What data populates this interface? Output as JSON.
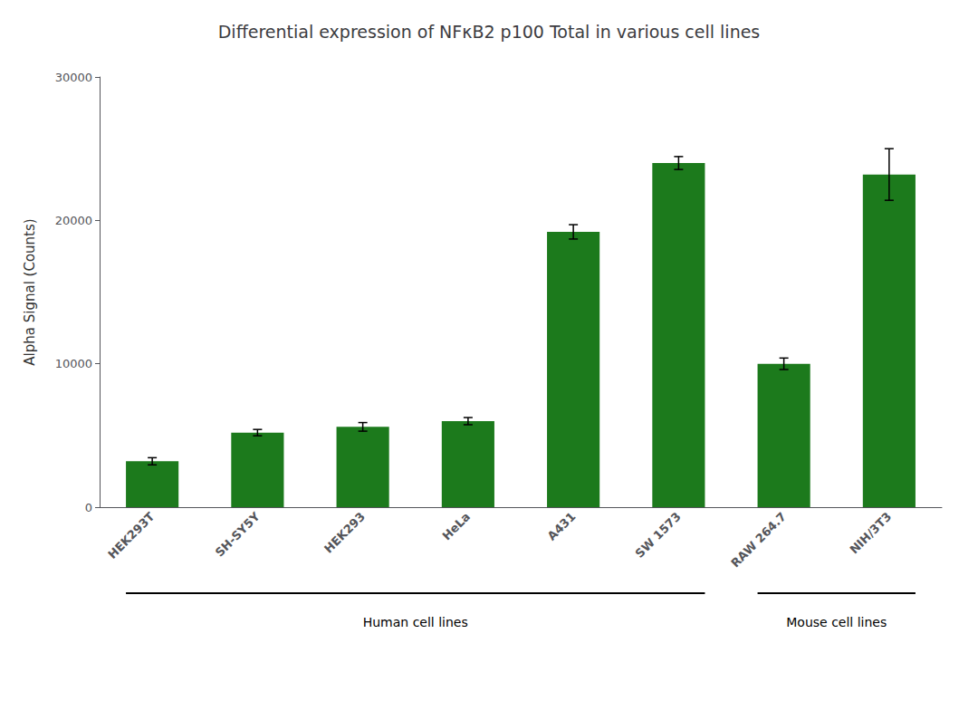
{
  "chart_data": {
    "type": "bar",
    "title": "Differential expression of NFκB2 p100 Total in various cell lines",
    "ylabel": "Alpha Signal (Counts)",
    "categories": [
      "HEK293T",
      "SH-SY5Y",
      "HEK293",
      "HeLa",
      "A431",
      "SW 1573",
      "RAW 264.7",
      "NIH/3T3"
    ],
    "values": [
      3200,
      5200,
      5600,
      6000,
      19200,
      24000,
      10000,
      23200
    ],
    "errors": [
      250,
      220,
      300,
      250,
      500,
      450,
      400,
      1800
    ],
    "color": "#1c7a1c",
    "ylim": [
      0,
      30000
    ],
    "yticks": [
      0,
      10000,
      20000,
      30000
    ],
    "grid": false,
    "annotations": [
      {
        "text": "Human cell lines",
        "from": "HEK293T",
        "to": "SW 1573"
      },
      {
        "text": "Mouse cell lines",
        "from": "RAW 264.7",
        "to": "NIH/3T3"
      }
    ]
  }
}
